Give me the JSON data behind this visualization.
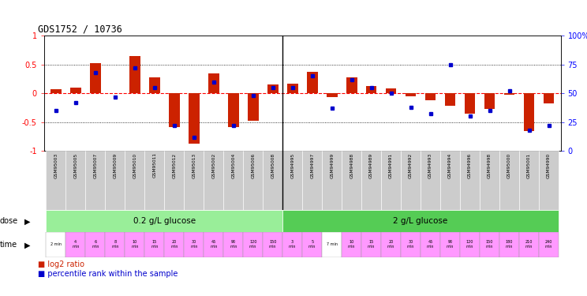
{
  "title": "GDS1752 / 10736",
  "sample_ids": [
    "GSM95003",
    "GSM95005",
    "GSM95007",
    "GSM95009",
    "GSM95010",
    "GSM95011",
    "GSM95012",
    "GSM95013",
    "GSM95002",
    "GSM95004",
    "GSM95006",
    "GSM95008",
    "GSM94995",
    "GSM94997",
    "GSM94999",
    "GSM94988",
    "GSM94989",
    "GSM94991",
    "GSM94992",
    "GSM94993",
    "GSM94994",
    "GSM94996",
    "GSM94998",
    "GSM95000",
    "GSM95001",
    "GSM94990"
  ],
  "log2_ratios": [
    0.07,
    0.1,
    0.52,
    0.0,
    0.65,
    0.28,
    -0.58,
    -0.87,
    0.35,
    -0.58,
    -0.48,
    0.15,
    0.17,
    0.37,
    -0.07,
    0.28,
    0.13,
    0.08,
    -0.05,
    -0.12,
    -0.22,
    -0.35,
    -0.27,
    -0.03,
    -0.65,
    -0.17
  ],
  "percentile_ranks": [
    35,
    42,
    68,
    47,
    72,
    55,
    22,
    12,
    60,
    22,
    48,
    55,
    55,
    65,
    37,
    62,
    55,
    50,
    38,
    32,
    75,
    30,
    35,
    52,
    18,
    22
  ],
  "time_labels_02": [
    "2 min",
    "4\nmin",
    "6\nmin",
    "8\nmin",
    "10\nmin",
    "15\nmin",
    "20\nmin",
    "30\nmin",
    "45\nmin",
    "90\nmin",
    "120\nmin",
    "150\nmin"
  ],
  "time_labels_2": [
    "3\nmin",
    "5\nmin",
    "7 min",
    "10\nmin",
    "15\nmin",
    "20\nmin",
    "30\nmin",
    "45\nmin",
    "90\nmin",
    "120\nmin",
    "150\nmin",
    "180\nmin",
    "210\nmin",
    "240\nmin"
  ],
  "dose_02_label": "0.2 g/L glucose",
  "dose_2_label": "2 g/L glucose",
  "dose_02_color": "#99EE99",
  "dose_2_color": "#55CC55",
  "time_pink_color": "#FF99FF",
  "time_white_color": "#FFFFFF",
  "bar_color": "#CC2200",
  "dot_color": "#0000CC",
  "ylim_left": [
    -1,
    1
  ],
  "ylim_right": [
    0,
    100
  ],
  "yticks_left": [
    -1,
    -0.5,
    0,
    0.5,
    1
  ],
  "ytick_labels_left": [
    "-1",
    "-0.5",
    "0",
    "0.5",
    "1"
  ],
  "yticks_right": [
    0,
    25,
    50,
    75,
    100
  ],
  "ytick_labels_right": [
    "0",
    "25",
    "50",
    "75",
    "100%"
  ],
  "bg_color": "#FFFFFF",
  "n_02": 12,
  "n_2": 14
}
